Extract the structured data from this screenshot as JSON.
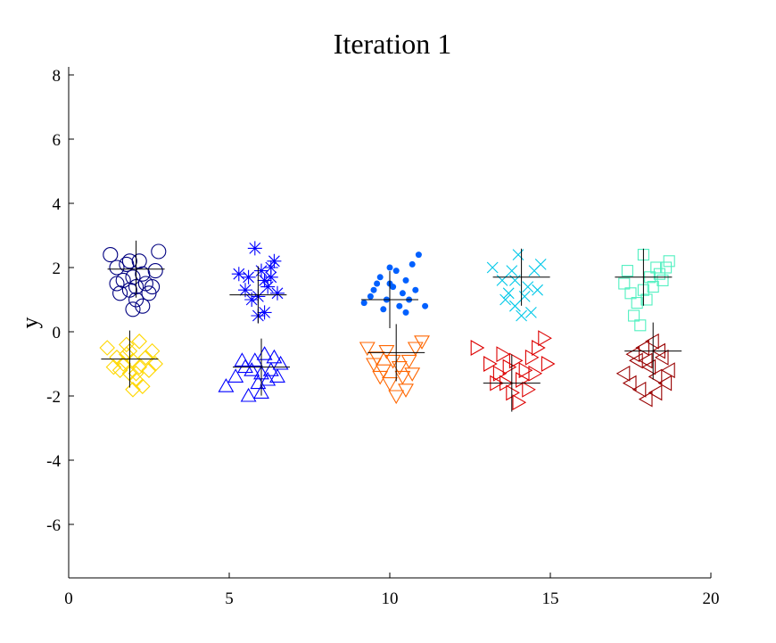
{
  "chart_data": {
    "type": "scatter",
    "title": "Iteration 1",
    "xlabel": "",
    "ylabel": "y",
    "xlim": [
      0,
      20
    ],
    "ylim": [
      -7.5,
      8.2
    ],
    "xticks": [
      "0",
      "5",
      "10",
      "15",
      "20"
    ],
    "yticks": [
      "-6",
      "-4",
      "-2",
      "0",
      "2",
      "4",
      "6",
      "8"
    ],
    "grid": false,
    "clusters": [
      {
        "marker": "circle",
        "color": "#000080",
        "center": [
          2.1,
          1.95
        ]
      },
      {
        "marker": "diamond",
        "color": "#ffd700",
        "center": [
          1.9,
          -0.85
        ]
      },
      {
        "marker": "asterisk",
        "color": "#0000ff",
        "center": [
          5.9,
          1.15
        ]
      },
      {
        "marker": "triangle-up",
        "color": "#0000ff",
        "center": [
          6.0,
          -1.1
        ]
      },
      {
        "marker": "dot",
        "color": "#0060ff",
        "center": [
          10.0,
          1.0
        ]
      },
      {
        "marker": "triangle-down",
        "color": "#ff6600",
        "center": [
          10.2,
          -0.65
        ]
      },
      {
        "marker": "x",
        "color": "#00c8e8",
        "center": [
          14.1,
          1.7
        ]
      },
      {
        "marker": "triangle-right",
        "color": "#dd0000",
        "center": [
          13.8,
          -1.6
        ]
      },
      {
        "marker": "square",
        "color": "#50f0c0",
        "center": [
          17.9,
          1.7
        ]
      },
      {
        "marker": "triangle-left",
        "color": "#990000",
        "center": [
          18.2,
          -0.6
        ]
      }
    ],
    "points": [
      [
        [
          1.3,
          2.4
        ],
        [
          1.5,
          2.0
        ],
        [
          1.7,
          1.6
        ],
        [
          1.9,
          1.3
        ],
        [
          2.1,
          1.0
        ],
        [
          2.3,
          0.8
        ],
        [
          2.5,
          1.2
        ],
        [
          2.7,
          1.9
        ],
        [
          2.8,
          2.5
        ],
        [
          2.2,
          2.2
        ],
        [
          1.8,
          2.1
        ],
        [
          2.0,
          1.7
        ],
        [
          2.4,
          1.5
        ],
        [
          1.6,
          1.2
        ],
        [
          2.6,
          1.4
        ],
        [
          2.0,
          0.7
        ],
        [
          1.5,
          1.5
        ],
        [
          2.3,
          1.8
        ],
        [
          1.9,
          2.2
        ],
        [
          2.1,
          1.4
        ]
      ],
      [
        [
          1.2,
          -0.5
        ],
        [
          1.5,
          -0.8
        ],
        [
          1.7,
          -1.0
        ],
        [
          1.9,
          -1.3
        ],
        [
          2.1,
          -1.5
        ],
        [
          2.3,
          -1.7
        ],
        [
          2.5,
          -1.2
        ],
        [
          2.6,
          -0.6
        ],
        [
          2.2,
          -0.3
        ],
        [
          1.8,
          -0.4
        ],
        [
          2.0,
          -0.9
        ],
        [
          1.6,
          -1.2
        ],
        [
          2.4,
          -0.8
        ],
        [
          1.4,
          -1.1
        ],
        [
          2.7,
          -1.0
        ],
        [
          2.0,
          -1.8
        ],
        [
          1.8,
          -0.7
        ],
        [
          2.2,
          -1.1
        ],
        [
          1.9,
          -0.6
        ],
        [
          2.1,
          -1.3
        ]
      ],
      [
        [
          5.3,
          1.8
        ],
        [
          5.5,
          1.3
        ],
        [
          5.7,
          1.0
        ],
        [
          5.9,
          0.5
        ],
        [
          6.1,
          1.6
        ],
        [
          6.3,
          2.0
        ],
        [
          6.5,
          1.2
        ],
        [
          5.8,
          2.6
        ],
        [
          6.0,
          1.9
        ],
        [
          6.2,
          1.4
        ],
        [
          5.6,
          1.7
        ],
        [
          6.4,
          2.2
        ],
        [
          5.9,
          1.1
        ],
        [
          6.1,
          0.6
        ],
        [
          6.3,
          1.7
        ]
      ],
      [
        [
          4.9,
          -1.7
        ],
        [
          5.2,
          -1.4
        ],
        [
          5.5,
          -1.1
        ],
        [
          5.8,
          -0.9
        ],
        [
          6.0,
          -1.3
        ],
        [
          6.2,
          -1.5
        ],
        [
          6.4,
          -0.8
        ],
        [
          6.6,
          -1.0
        ],
        [
          5.6,
          -2.0
        ],
        [
          6.1,
          -0.7
        ],
        [
          5.9,
          -1.6
        ],
        [
          6.3,
          -1.2
        ],
        [
          5.4,
          -0.9
        ],
        [
          6.5,
          -1.4
        ],
        [
          5.7,
          -1.2
        ],
        [
          6.0,
          -1.9
        ]
      ],
      [
        [
          9.2,
          0.9
        ],
        [
          9.5,
          1.3
        ],
        [
          9.7,
          1.7
        ],
        [
          9.9,
          1.0
        ],
        [
          10.1,
          1.4
        ],
        [
          10.3,
          0.8
        ],
        [
          10.5,
          1.6
        ],
        [
          10.7,
          2.1
        ],
        [
          10.9,
          2.4
        ],
        [
          11.1,
          0.8
        ],
        [
          10.0,
          2.0
        ],
        [
          9.8,
          0.7
        ],
        [
          10.4,
          1.2
        ],
        [
          10.6,
          1.0
        ],
        [
          9.6,
          1.5
        ],
        [
          10.2,
          1.9
        ],
        [
          10.8,
          1.3
        ],
        [
          9.4,
          1.1
        ],
        [
          10.0,
          1.5
        ],
        [
          10.5,
          0.6
        ]
      ],
      [
        [
          9.3,
          -0.5
        ],
        [
          9.6,
          -0.8
        ],
        [
          9.8,
          -1.2
        ],
        [
          10.0,
          -1.6
        ],
        [
          10.2,
          -2.0
        ],
        [
          10.4,
          -1.4
        ],
        [
          10.6,
          -0.9
        ],
        [
          10.8,
          -0.5
        ],
        [
          11.0,
          -0.3
        ],
        [
          9.9,
          -0.6
        ],
        [
          10.1,
          -0.9
        ],
        [
          10.3,
          -1.1
        ],
        [
          9.7,
          -1.4
        ],
        [
          10.5,
          -1.8
        ],
        [
          9.5,
          -1.0
        ],
        [
          10.7,
          -1.3
        ]
      ],
      [
        [
          13.2,
          2.0
        ],
        [
          13.5,
          1.6
        ],
        [
          13.7,
          1.2
        ],
        [
          13.9,
          0.8
        ],
        [
          14.1,
          0.5
        ],
        [
          14.3,
          1.4
        ],
        [
          14.5,
          1.9
        ],
        [
          14.7,
          2.1
        ],
        [
          14.0,
          2.4
        ],
        [
          13.8,
          1.9
        ],
        [
          14.2,
          1.1
        ],
        [
          14.4,
          0.6
        ],
        [
          13.6,
          1.0
        ],
        [
          14.6,
          1.3
        ],
        [
          13.9,
          1.6
        ]
      ],
      [
        [
          12.7,
          -0.5
        ],
        [
          13.1,
          -1.0
        ],
        [
          13.4,
          -1.3
        ],
        [
          13.6,
          -1.6
        ],
        [
          13.8,
          -1.9
        ],
        [
          14.0,
          -2.2
        ],
        [
          14.2,
          -1.2
        ],
        [
          14.4,
          -0.8
        ],
        [
          14.6,
          -0.5
        ],
        [
          14.8,
          -0.2
        ],
        [
          13.9,
          -0.9
        ],
        [
          14.1,
          -1.5
        ],
        [
          13.5,
          -0.7
        ],
        [
          14.3,
          -1.8
        ],
        [
          13.7,
          -1.1
        ],
        [
          14.5,
          -1.3
        ],
        [
          14.9,
          -1.0
        ],
        [
          13.3,
          -1.6
        ]
      ],
      [
        [
          17.3,
          1.5
        ],
        [
          17.5,
          1.2
        ],
        [
          17.7,
          0.9
        ],
        [
          17.9,
          1.3
        ],
        [
          18.1,
          1.7
        ],
        [
          18.3,
          2.0
        ],
        [
          18.5,
          1.6
        ],
        [
          18.7,
          2.2
        ],
        [
          17.6,
          0.5
        ],
        [
          17.8,
          0.2
        ],
        [
          18.0,
          1.0
        ],
        [
          18.2,
          1.4
        ],
        [
          17.4,
          1.9
        ],
        [
          18.4,
          1.8
        ],
        [
          17.9,
          2.4
        ],
        [
          18.6,
          2.0
        ]
      ],
      [
        [
          17.3,
          -1.3
        ],
        [
          17.5,
          -1.6
        ],
        [
          17.7,
          -0.9
        ],
        [
          17.9,
          -0.5
        ],
        [
          18.1,
          -1.1
        ],
        [
          18.3,
          -1.4
        ],
        [
          18.5,
          -0.8
        ],
        [
          18.7,
          -1.2
        ],
        [
          18.0,
          -2.1
        ],
        [
          18.2,
          -0.3
        ],
        [
          17.8,
          -1.8
        ],
        [
          18.4,
          -0.6
        ],
        [
          17.6,
          -0.7
        ],
        [
          18.6,
          -1.6
        ],
        [
          18.0,
          -0.9
        ],
        [
          18.3,
          -1.9
        ]
      ]
    ]
  }
}
